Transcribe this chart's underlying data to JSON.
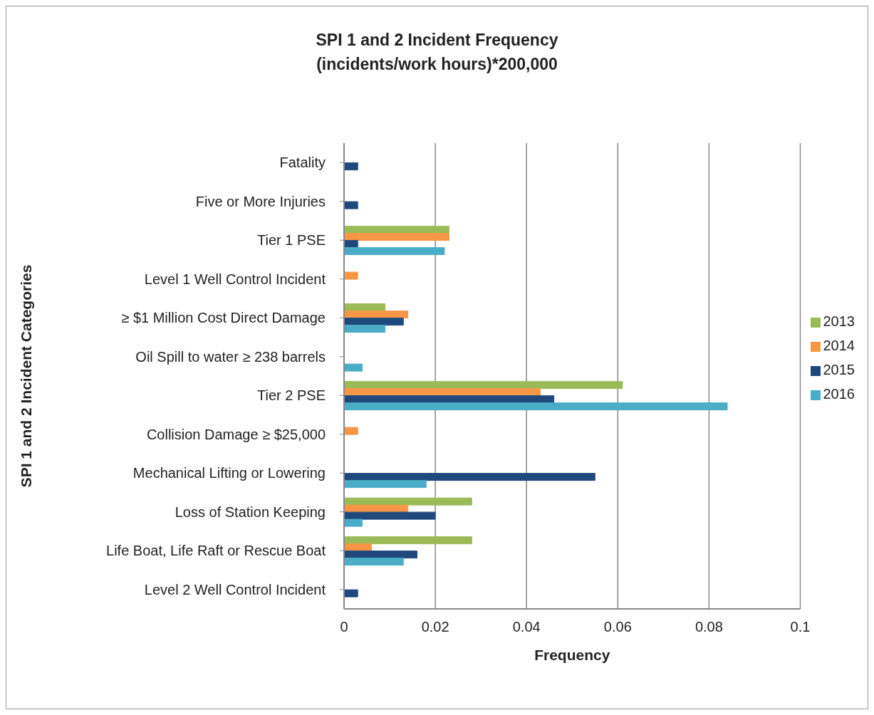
{
  "chart_data": {
    "type": "bar",
    "orientation": "horizontal",
    "title": "SPI 1 and 2 Incident Frequency\n(incidents/work hours)*200,000",
    "xlabel": "Frequency",
    "ylabel": "SPI 1 and 2 Incident Categories",
    "categories": [
      "Fatality",
      "Five or More Injuries",
      "Tier 1 PSE",
      "Level 1 Well Control Incident",
      "≥ $1 Million Cost Direct Damage",
      "Oil Spill to water ≥ 238 barrels",
      "Tier 2 PSE",
      "Collision Damage ≥ $25,000",
      "Mechanical Lifting or Lowering",
      "Loss of Station Keeping",
      "Life Boat, Life Raft or Rescue Boat",
      "Level 2 Well Control Incident"
    ],
    "series": [
      {
        "name": "2013",
        "color": "#9bbb59",
        "values": [
          null,
          null,
          0.023,
          null,
          0.009,
          null,
          0.061,
          null,
          null,
          0.028,
          0.028,
          null
        ]
      },
      {
        "name": "2014",
        "color": "#f79646",
        "values": [
          null,
          null,
          0.023,
          0.003,
          0.014,
          null,
          0.043,
          0.003,
          null,
          0.014,
          0.006,
          null
        ]
      },
      {
        "name": "2015",
        "color": "#1f497d",
        "values": [
          0.003,
          0.003,
          0.003,
          null,
          0.013,
          null,
          0.046,
          null,
          0.055,
          0.02,
          0.016,
          0.003
        ]
      },
      {
        "name": "2016",
        "color": "#4bacc6",
        "values": [
          null,
          null,
          0.022,
          null,
          0.009,
          0.004,
          0.084,
          null,
          0.018,
          0.004,
          0.013,
          null
        ]
      }
    ],
    "xlim": [
      0,
      0.1
    ],
    "xticks": [
      0,
      0.02,
      0.04,
      0.06,
      0.08,
      0.1
    ],
    "grid": "x",
    "legend": "right"
  }
}
